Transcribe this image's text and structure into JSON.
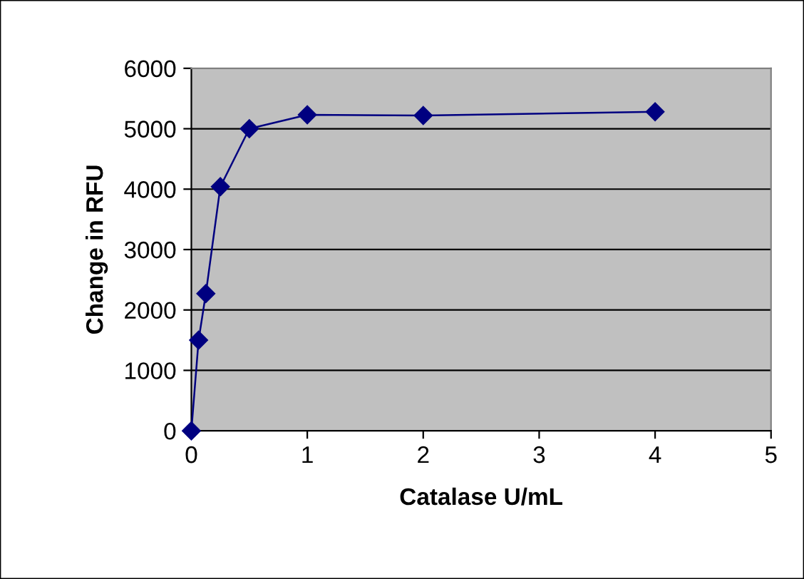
{
  "chart_data": {
    "type": "line",
    "xlabel": "Catalase U/mL",
    "ylabel": "Change in RFU",
    "x": [
      0,
      0.0625,
      0.125,
      0.25,
      0.5,
      1,
      2,
      4
    ],
    "series": [
      {
        "color": "#000080",
        "values": [
          0,
          1500,
          2270,
          4040,
          5000,
          5230,
          5220,
          5280
        ]
      }
    ],
    "xlim": [
      0,
      5
    ],
    "xticks": [
      0,
      1,
      2,
      3,
      4,
      5
    ],
    "ylim": [
      0,
      6000
    ],
    "yticks": [
      0,
      1000,
      2000,
      3000,
      4000,
      5000,
      6000
    ],
    "grid": "y",
    "marker": "diamond",
    "line_style": "solid"
  }
}
